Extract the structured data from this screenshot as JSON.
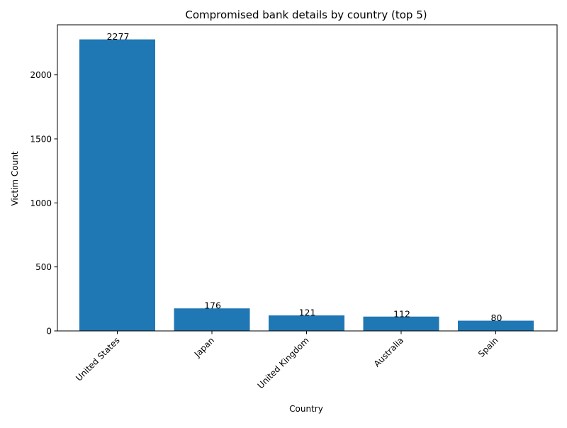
{
  "chart_data": {
    "type": "bar",
    "title": "Compromised bank details by country (top 5)",
    "xlabel": "Country",
    "ylabel": "Victim Count",
    "categories": [
      "United States",
      "Japan",
      "United Kingdom",
      "Australia",
      "Spain"
    ],
    "values": [
      2277,
      176,
      121,
      112,
      80
    ],
    "data_labels": [
      "2277",
      "176",
      "121",
      "112",
      "80"
    ],
    "ylim": [
      0,
      2391
    ],
    "yticks": [
      0,
      500,
      1000,
      1500,
      2000
    ],
    "ytick_labels": [
      "0",
      "500",
      "1000",
      "1500",
      "2000"
    ],
    "xtick_rotation": 45,
    "grid": false,
    "legend": "none",
    "bar_color": "#1f77b4"
  }
}
